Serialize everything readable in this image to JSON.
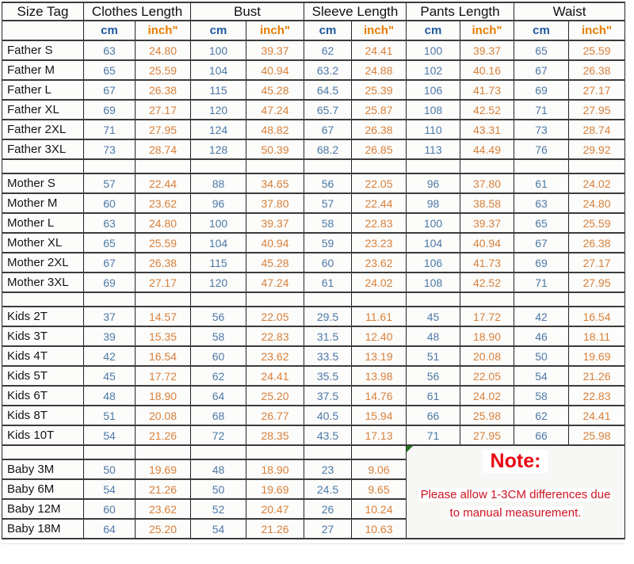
{
  "note": {
    "title": "Note:",
    "line1": "Please allow 1-3CM differences due",
    "line2": "to manual measurement."
  },
  "colors": {
    "cm_header": "#1d5a9e",
    "inch_header": "#e87d00",
    "cm_value": "#4d79a6",
    "inch_value": "#d8803a",
    "note_title": "#ea0613",
    "note_body": "#d01322",
    "corner_marker_green": "#1f7a1f"
  },
  "chart_data": {
    "type": "table",
    "size_tag_label": "Size Tag",
    "unit_cm": "cm",
    "unit_inch": "inch\"",
    "groups": [
      {
        "label": "Clothes Length"
      },
      {
        "label": "Bust"
      },
      {
        "label": "Sleeve Length"
      },
      {
        "label": "Pants Length"
      },
      {
        "label": "Waist"
      }
    ],
    "sections": [
      {
        "name": "father",
        "rows": [
          {
            "tag": "Father S",
            "cells": [
              "63",
              "24.80",
              "100",
              "39.37",
              "62",
              "24.41",
              "100",
              "39.37",
              "65",
              "25.59"
            ]
          },
          {
            "tag": "Father M",
            "cells": [
              "65",
              "25.59",
              "104",
              "40.94",
              "63.2",
              "24.88",
              "102",
              "40.16",
              "67",
              "26.38"
            ]
          },
          {
            "tag": "Father L",
            "cells": [
              "67",
              "26.38",
              "115",
              "45.28",
              "64.5",
              "25.39",
              "106",
              "41.73",
              "69",
              "27.17"
            ]
          },
          {
            "tag": "Father XL",
            "cells": [
              "69",
              "27.17",
              "120",
              "47.24",
              "65.7",
              "25.87",
              "108",
              "42.52",
              "71",
              "27.95"
            ]
          },
          {
            "tag": "Father 2XL",
            "cells": [
              "71",
              "27.95",
              "124",
              "48.82",
              "67",
              "26.38",
              "110",
              "43.31",
              "73",
              "28.74"
            ]
          },
          {
            "tag": "Father 3XL",
            "cells": [
              "73",
              "28.74",
              "128",
              "50.39",
              "68.2",
              "26.85",
              "113",
              "44.49",
              "76",
              "29.92"
            ]
          }
        ]
      },
      {
        "name": "mother",
        "rows": [
          {
            "tag": "Mother S",
            "cells": [
              "57",
              "22.44",
              "88",
              "34.65",
              "56",
              "22.05",
              "96",
              "37.80",
              "61",
              "24.02"
            ]
          },
          {
            "tag": "Mother M",
            "cells": [
              "60",
              "23.62",
              "96",
              "37.80",
              "57",
              "22.44",
              "98",
              "38.58",
              "63",
              "24.80"
            ]
          },
          {
            "tag": "Mother L",
            "cells": [
              "63",
              "24.80",
              "100",
              "39.37",
              "58",
              "22.83",
              "100",
              "39.37",
              "65",
              "25.59"
            ]
          },
          {
            "tag": "Mother XL",
            "cells": [
              "65",
              "25.59",
              "104",
              "40.94",
              "59",
              "23.23",
              "104",
              "40.94",
              "67",
              "26.38"
            ]
          },
          {
            "tag": "Mother 2XL",
            "cells": [
              "67",
              "26.38",
              "115",
              "45.28",
              "60",
              "23.62",
              "106",
              "41.73",
              "69",
              "27.17"
            ]
          },
          {
            "tag": "Mother 3XL",
            "cells": [
              "69",
              "27.17",
              "120",
              "47.24",
              "61",
              "24.02",
              "108",
              "42.52",
              "71",
              "27.95"
            ]
          }
        ]
      },
      {
        "name": "kids",
        "rows": [
          {
            "tag": "Kids 2T",
            "cells": [
              "37",
              "14.57",
              "56",
              "22.05",
              "29.5",
              "11.61",
              "45",
              "17.72",
              "42",
              "16.54"
            ]
          },
          {
            "tag": "Kids 3T",
            "cells": [
              "39",
              "15.35",
              "58",
              "22.83",
              "31.5",
              "12.40",
              "48",
              "18.90",
              "46",
              "18.11"
            ]
          },
          {
            "tag": "Kids 4T",
            "cells": [
              "42",
              "16.54",
              "60",
              "23.62",
              "33.5",
              "13.19",
              "51",
              "20.08",
              "50",
              "19.69"
            ]
          },
          {
            "tag": "Kids 5T",
            "cells": [
              "45",
              "17.72",
              "62",
              "24.41",
              "35.5",
              "13.98",
              "56",
              "22.05",
              "54",
              "21.26"
            ]
          },
          {
            "tag": "Kids 6T",
            "cells": [
              "48",
              "18.90",
              "64",
              "25.20",
              "37.5",
              "14.76",
              "61",
              "24.02",
              "58",
              "22.83"
            ]
          },
          {
            "tag": "Kids 8T",
            "cells": [
              "51",
              "20.08",
              "68",
              "26.77",
              "40.5",
              "15.94",
              "66",
              "25.98",
              "62",
              "24.41"
            ]
          },
          {
            "tag": "Kids 10T",
            "cells": [
              "54",
              "21.26",
              "72",
              "28.35",
              "43.5",
              "17.13",
              "71",
              "27.95",
              "66",
              "25.98"
            ]
          }
        ]
      },
      {
        "name": "baby",
        "rows": [
          {
            "tag": "Baby 3M",
            "cells": [
              "50",
              "19.69",
              "48",
              "18.90",
              "23",
              "9.06"
            ]
          },
          {
            "tag": "Baby 6M",
            "cells": [
              "54",
              "21.26",
              "50",
              "19.69",
              "24.5",
              "9.65"
            ]
          },
          {
            "tag": "Baby 12M",
            "cells": [
              "60",
              "23.62",
              "52",
              "20.47",
              "26",
              "10.24"
            ]
          },
          {
            "tag": "Baby 18M",
            "cells": [
              "64",
              "25.20",
              "54",
              "21.26",
              "27",
              "10.63"
            ]
          }
        ]
      }
    ]
  }
}
